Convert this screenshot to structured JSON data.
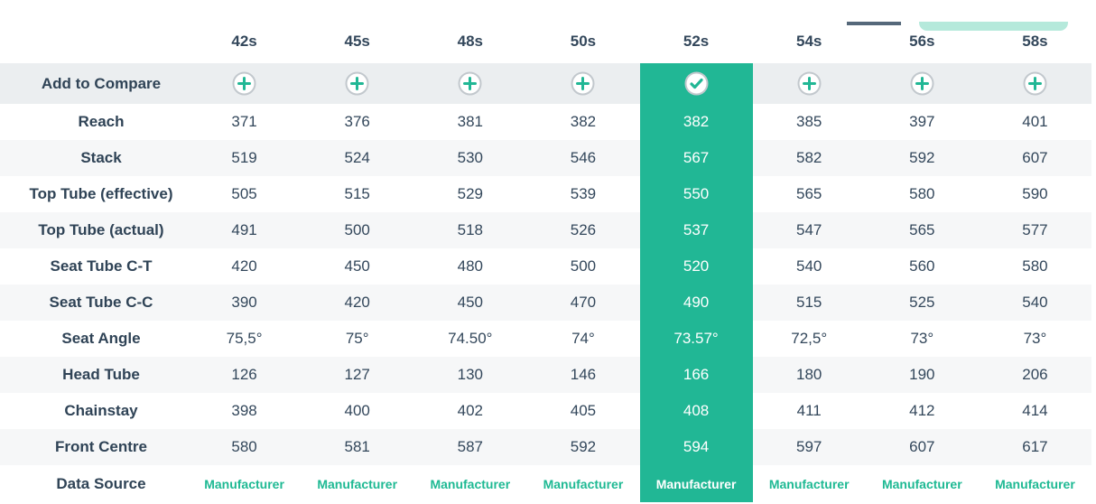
{
  "colors": {
    "accent": "#21b795",
    "accent_light": "#b5e9db",
    "dark_text": "#33475b",
    "row_alt_bg": "#f6f7f8",
    "compare_row_bg": "#ebeef0",
    "icon_ring": "#c2c8cd",
    "partial_dark_button": "#55687a"
  },
  "table": {
    "sizes": [
      "42s",
      "45s",
      "48s",
      "50s",
      "52s",
      "54s",
      "56s",
      "58s"
    ],
    "selected_size": "52s",
    "selected_index": 4,
    "compare_row_label": "Add to Compare",
    "rows": [
      {
        "label": "Reach",
        "values": [
          "371",
          "376",
          "381",
          "382",
          "382",
          "385",
          "397",
          "401"
        ]
      },
      {
        "label": "Stack",
        "values": [
          "519",
          "524",
          "530",
          "546",
          "567",
          "582",
          "592",
          "607"
        ]
      },
      {
        "label": "Top Tube (effective)",
        "values": [
          "505",
          "515",
          "529",
          "539",
          "550",
          "565",
          "580",
          "590"
        ]
      },
      {
        "label": "Top Tube (actual)",
        "values": [
          "491",
          "500",
          "518",
          "526",
          "537",
          "547",
          "565",
          "577"
        ]
      },
      {
        "label": "Seat Tube C-T",
        "values": [
          "420",
          "450",
          "480",
          "500",
          "520",
          "540",
          "560",
          "580"
        ]
      },
      {
        "label": "Seat Tube C-C",
        "values": [
          "390",
          "420",
          "450",
          "470",
          "490",
          "515",
          "525",
          "540"
        ]
      },
      {
        "label": "Seat Angle",
        "values": [
          "75,5°",
          "75°",
          "74.50°",
          "74°",
          "73.57°",
          "72,5°",
          "73°",
          "73°"
        ]
      },
      {
        "label": "Head Tube",
        "values": [
          "126",
          "127",
          "130",
          "146",
          "166",
          "180",
          "190",
          "206"
        ]
      },
      {
        "label": "Chainstay",
        "values": [
          "398",
          "400",
          "402",
          "405",
          "408",
          "411",
          "412",
          "414"
        ]
      },
      {
        "label": "Front Centre",
        "values": [
          "580",
          "581",
          "587",
          "592",
          "594",
          "597",
          "607",
          "617"
        ]
      }
    ],
    "data_source_row": {
      "label": "Data Source",
      "values": [
        "Manufacturer",
        "Manufacturer",
        "Manufacturer",
        "Manufacturer",
        "Manufacturer",
        "Manufacturer",
        "Manufacturer",
        "Manufacturer"
      ]
    }
  }
}
